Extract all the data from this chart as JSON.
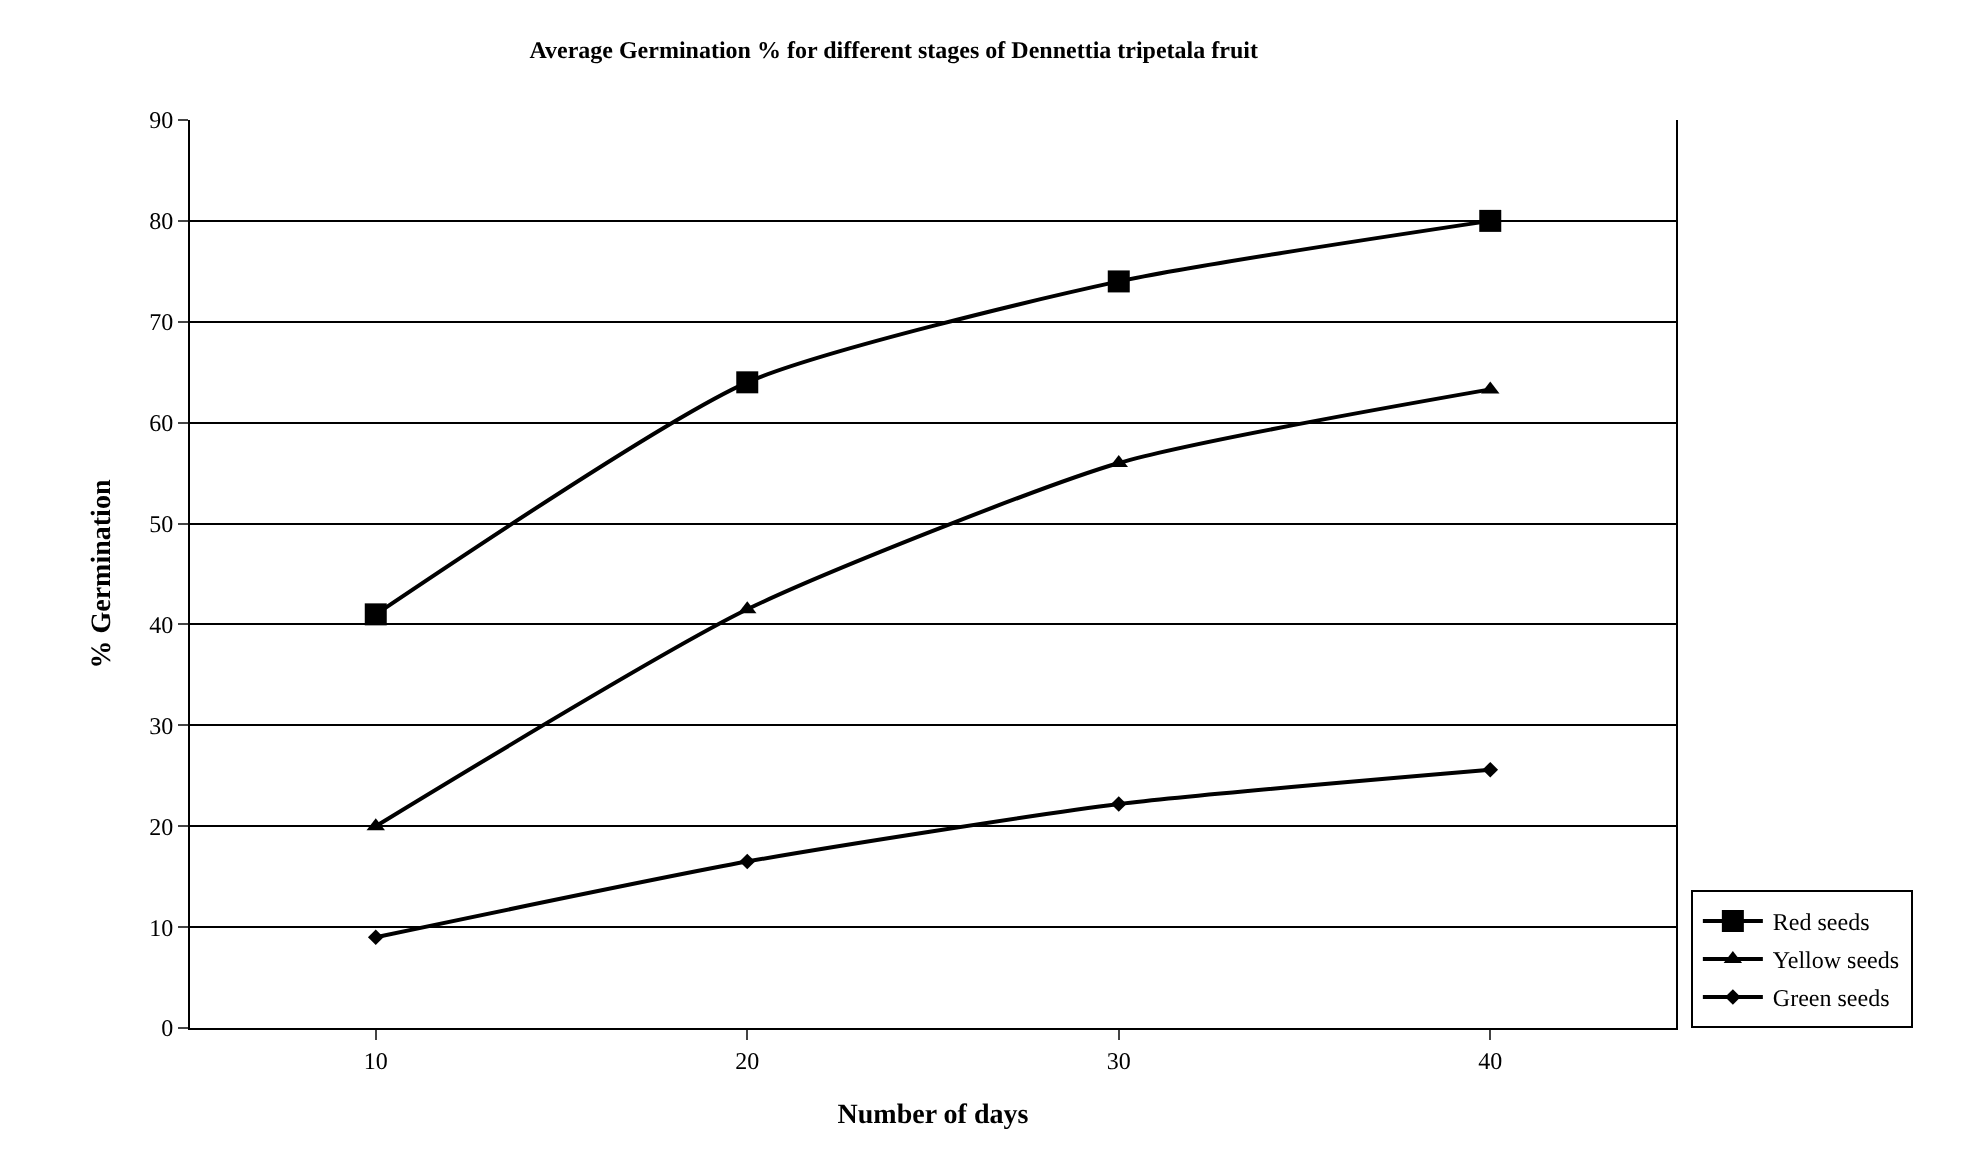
{
  "chart_data": {
    "type": "line",
    "title": "Average Germination % for different stages of Dennettia tripetala fruit",
    "xlabel": "Number of days",
    "ylabel": "% Germination",
    "categories": [
      "10",
      "20",
      "30",
      "40"
    ],
    "series": [
      {
        "name": "Red seeds",
        "color": "#000000",
        "marker": "square",
        "values": [
          41,
          64,
          74,
          80
        ]
      },
      {
        "name": "Yellow seeds",
        "color": "#000000",
        "marker": "triangle",
        "values": [
          20,
          41.5,
          56,
          63.3
        ]
      },
      {
        "name": "Green seeds",
        "color": "#000000",
        "marker": "diamond",
        "values": [
          9,
          16.5,
          22.2,
          25.6
        ]
      }
    ],
    "ylim": [
      0,
      90
    ],
    "yticks": [
      0,
      10,
      20,
      30,
      40,
      50,
      60,
      70,
      80,
      90
    ],
    "grid": "y",
    "legend": "bottom right",
    "line_style": "solid"
  }
}
